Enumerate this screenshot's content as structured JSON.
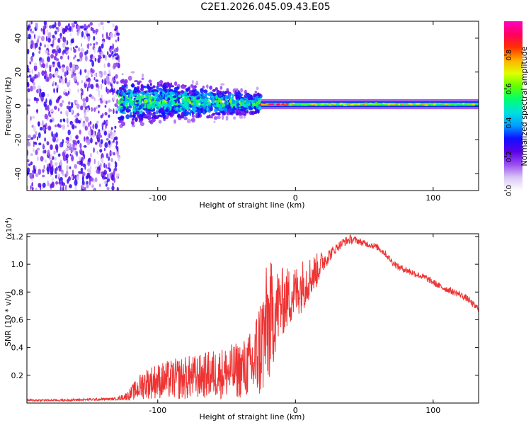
{
  "title": "C2E1.2026.045.09.43.E05",
  "colors": {
    "line": "#ee3333",
    "axis": "#000000",
    "background": "#ffffff",
    "spectrogram_scatter": "#6a1fe0"
  },
  "chart_data": [
    {
      "type": "heatmap",
      "title": "",
      "xlabel": "Height of straight line (km)",
      "ylabel": "Frequency (Hz)",
      "xlim": [
        -195,
        133
      ],
      "ylim": [
        -50,
        50
      ],
      "xticks": [
        -100,
        0,
        100
      ],
      "xtick_labels": [
        "-100",
        "0",
        "100"
      ],
      "yticks": [
        -40,
        -20,
        0,
        20,
        40
      ],
      "ytick_labels": [
        "-40",
        "-20",
        "0",
        "20",
        "40"
      ],
      "colorbar": {
        "label": "Normalized spectral amplitude",
        "range": [
          0,
          1
        ],
        "ticks": [
          0.0,
          0.2,
          0.4,
          0.6,
          0.8
        ],
        "tick_labels": [
          "0.0",
          "0.2",
          "0.4",
          "0.6",
          "0.8"
        ],
        "colormap": [
          "#ffffff",
          "#d9c8f5",
          "#9a4df0",
          "#5a00e8",
          "#1010ff",
          "#00a0ff",
          "#00e0e0",
          "#00ff70",
          "#60ff00",
          "#e0ff00",
          "#ffb000",
          "#ff3000",
          "#ff0060",
          "#ff00c0"
        ]
      },
      "regions": [
        {
          "name": "broadband noise",
          "x_range": [
            -195,
            -128
          ],
          "freq_spread": [
            -50,
            50
          ],
          "amplitude": [
            0.05,
            0.3
          ]
        },
        {
          "name": "scattered band",
          "x_range": [
            -128,
            -25
          ],
          "freq_spread": [
            -15,
            18
          ],
          "amplitude": [
            0.1,
            0.6
          ]
        },
        {
          "name": "narrow carrier",
          "x_range": [
            -25,
            133
          ],
          "freq_center": 1,
          "freq_width": 3,
          "amplitude": [
            0.5,
            0.95
          ]
        }
      ]
    },
    {
      "type": "line",
      "title": "",
      "xlabel": "Height of straight line (km)",
      "ylabel": "SNR (10 * v/v)",
      "multiplier": "(x10",
      "multiplier_exp": "4",
      "multiplier_close": ")",
      "xlim": [
        -195,
        133
      ],
      "ylim": [
        0,
        1.22
      ],
      "xticks": [
        -100,
        0,
        100
      ],
      "xtick_labels": [
        "-100",
        "0",
        "100"
      ],
      "yticks": [
        0.2,
        0.4,
        0.6,
        0.8,
        1.0,
        1.2
      ],
      "ytick_labels": [
        "0.2",
        "0.4",
        "0.6",
        "0.8",
        "1.0",
        "1.2"
      ],
      "series": [
        {
          "name": "SNR",
          "x": [
            -195,
            -170,
            -150,
            -130,
            -122,
            -115,
            -110,
            -100,
            -90,
            -80,
            -70,
            -60,
            -50,
            -40,
            -35,
            -30,
            -28,
            -25,
            -22,
            -20,
            -17,
            -15,
            -12,
            -10,
            -8,
            -5,
            0,
            5,
            10,
            15,
            20,
            25,
            30,
            35,
            40,
            45,
            50,
            55,
            60,
            65,
            70,
            75,
            80,
            85,
            90,
            95,
            100,
            105,
            110,
            115,
            120,
            125,
            130,
            133
          ],
          "mean": [
            0.02,
            0.02,
            0.025,
            0.03,
            0.05,
            0.1,
            0.14,
            0.16,
            0.17,
            0.18,
            0.19,
            0.21,
            0.22,
            0.24,
            0.26,
            0.28,
            0.35,
            0.42,
            0.5,
            0.56,
            0.62,
            0.66,
            0.7,
            0.72,
            0.74,
            0.76,
            0.8,
            0.85,
            0.9,
            0.95,
            1.02,
            1.07,
            1.12,
            1.16,
            1.18,
            1.17,
            1.15,
            1.14,
            1.12,
            1.08,
            1.02,
            0.98,
            0.96,
            0.94,
            0.92,
            0.9,
            0.87,
            0.84,
            0.82,
            0.8,
            0.78,
            0.75,
            0.7,
            0.68
          ],
          "noise": [
            0.005,
            0.005,
            0.006,
            0.006,
            0.02,
            0.05,
            0.07,
            0.08,
            0.09,
            0.1,
            0.1,
            0.11,
            0.12,
            0.13,
            0.14,
            0.18,
            0.22,
            0.25,
            0.28,
            0.3,
            0.25,
            0.2,
            0.18,
            0.16,
            0.15,
            0.14,
            0.12,
            0.12,
            0.1,
            0.08,
            0.05,
            0.03,
            0.02,
            0.02,
            0.02,
            0.015,
            0.015,
            0.015,
            0.015,
            0.015,
            0.015,
            0.015,
            0.015,
            0.015,
            0.015,
            0.015,
            0.015,
            0.015,
            0.015,
            0.015,
            0.015,
            0.015,
            0.015,
            0.015
          ]
        }
      ]
    }
  ]
}
